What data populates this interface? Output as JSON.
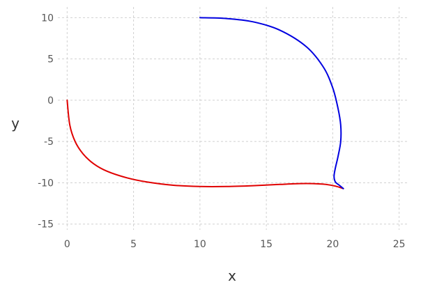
{
  "chart_data": {
    "type": "line",
    "title": "",
    "xlabel": "x",
    "ylabel": "y",
    "xlim": [
      -0.7,
      25.7
    ],
    "ylim": [
      -15.7,
      11.3
    ],
    "grid": true,
    "x_ticks": [
      0,
      5,
      10,
      15,
      20,
      25
    ],
    "y_ticks": [
      10,
      5,
      0,
      -5,
      -10,
      -15
    ],
    "x_tick_labels": [
      "0",
      "5",
      "10",
      "15",
      "20",
      "25"
    ],
    "y_tick_labels": [
      "10",
      "5",
      "0",
      "-5",
      "-10",
      "-15"
    ],
    "series": [
      {
        "color": "#e00000",
        "x": [
          0,
          0.2,
          0.6,
          1.2,
          2.0,
          3.0,
          4.5,
          6.0,
          8.0,
          10.0,
          12.0,
          14.0,
          16.0,
          17.5,
          18.5,
          19.5,
          20.2,
          20.8
        ],
        "y": [
          0,
          -3.0,
          -5.0,
          -6.5,
          -7.7,
          -8.6,
          -9.4,
          -9.9,
          -10.3,
          -10.45,
          -10.45,
          -10.35,
          -10.2,
          -10.1,
          -10.1,
          -10.2,
          -10.4,
          -10.7
        ]
      },
      {
        "color": "#0000e0",
        "x": [
          10.0,
          12.0,
          14.0,
          16.0,
          18.0,
          19.3,
          20.0,
          20.4,
          20.6,
          20.6,
          20.4,
          20.2,
          20.1,
          20.2,
          20.5,
          20.8
        ],
        "y": [
          10.0,
          9.9,
          9.5,
          8.5,
          6.5,
          4.0,
          1.5,
          -1.0,
          -3.0,
          -5.0,
          -6.8,
          -8.2,
          -9.2,
          -9.9,
          -10.3,
          -10.7
        ]
      }
    ]
  }
}
